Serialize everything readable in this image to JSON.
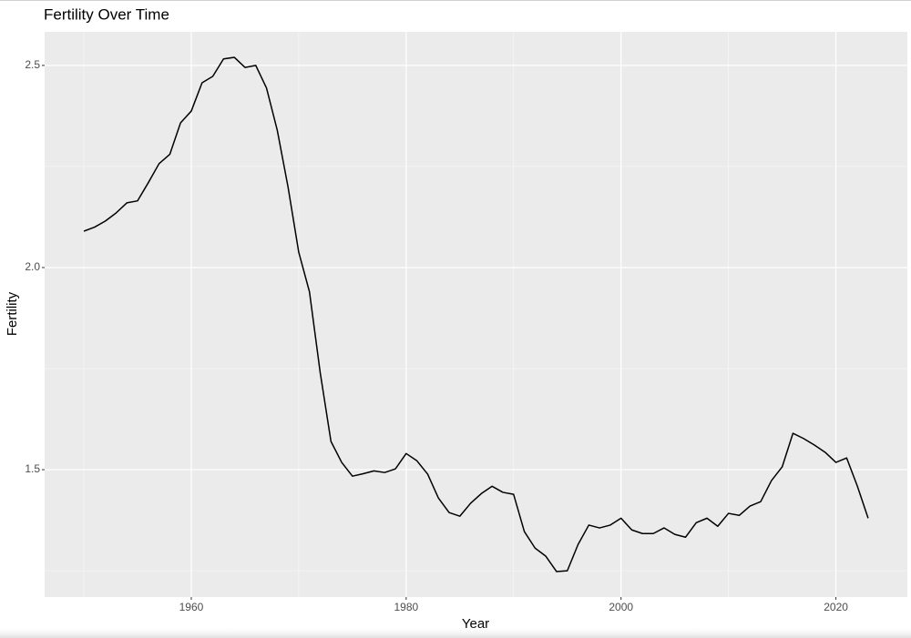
{
  "chart_data": {
    "type": "line",
    "title": "Fertility Over Time",
    "x_label": "Year",
    "y_label": "Fertility",
    "x": [
      1950,
      1951,
      1952,
      1953,
      1954,
      1955,
      1956,
      1957,
      1958,
      1959,
      1960,
      1961,
      1962,
      1963,
      1964,
      1965,
      1966,
      1967,
      1968,
      1969,
      1970,
      1971,
      1972,
      1973,
      1974,
      1975,
      1976,
      1977,
      1978,
      1979,
      1980,
      1981,
      1982,
      1983,
      1984,
      1985,
      1986,
      1987,
      1988,
      1989,
      1990,
      1991,
      1992,
      1993,
      1994,
      1995,
      1996,
      1997,
      1998,
      1999,
      2000,
      2001,
      2002,
      2003,
      2004,
      2005,
      2006,
      2007,
      2008,
      2009,
      2010,
      2011,
      2012,
      2013,
      2014,
      2015,
      2016,
      2017,
      2018,
      2019,
      2020,
      2021,
      2022,
      2023
    ],
    "values": [
      2.09,
      2.1,
      2.115,
      2.135,
      2.16,
      2.165,
      2.21,
      2.257,
      2.28,
      2.358,
      2.387,
      2.457,
      2.473,
      2.516,
      2.52,
      2.495,
      2.5,
      2.444,
      2.34,
      2.2,
      2.038,
      1.94,
      1.74,
      1.57,
      1.518,
      1.484,
      1.49,
      1.497,
      1.493,
      1.502,
      1.54,
      1.522,
      1.489,
      1.43,
      1.394,
      1.385,
      1.417,
      1.441,
      1.459,
      1.444,
      1.439,
      1.347,
      1.306,
      1.286,
      1.248,
      1.25,
      1.315,
      1.363,
      1.356,
      1.363,
      1.38,
      1.351,
      1.342,
      1.342,
      1.356,
      1.34,
      1.333,
      1.369,
      1.38,
      1.36,
      1.392,
      1.387,
      1.41,
      1.421,
      1.473,
      1.507,
      1.59,
      1.577,
      1.561,
      1.543,
      1.518,
      1.529,
      1.459,
      1.38
    ],
    "color": "#000000",
    "xlim": [
      1946.35,
      2026.65
    ],
    "xticks": [
      1960,
      1980,
      2000,
      2020
    ],
    "minor_xticks": [
      1950,
      1970,
      1990,
      2010
    ],
    "ylim": [
      1.185,
      2.583
    ],
    "yticks": [
      1.5,
      {
        "value": 2,
        "label": "2.0"
      },
      2.5
    ],
    "minor_yticks": [
      1.25,
      1.75,
      2.25
    ],
    "grid": true
  }
}
